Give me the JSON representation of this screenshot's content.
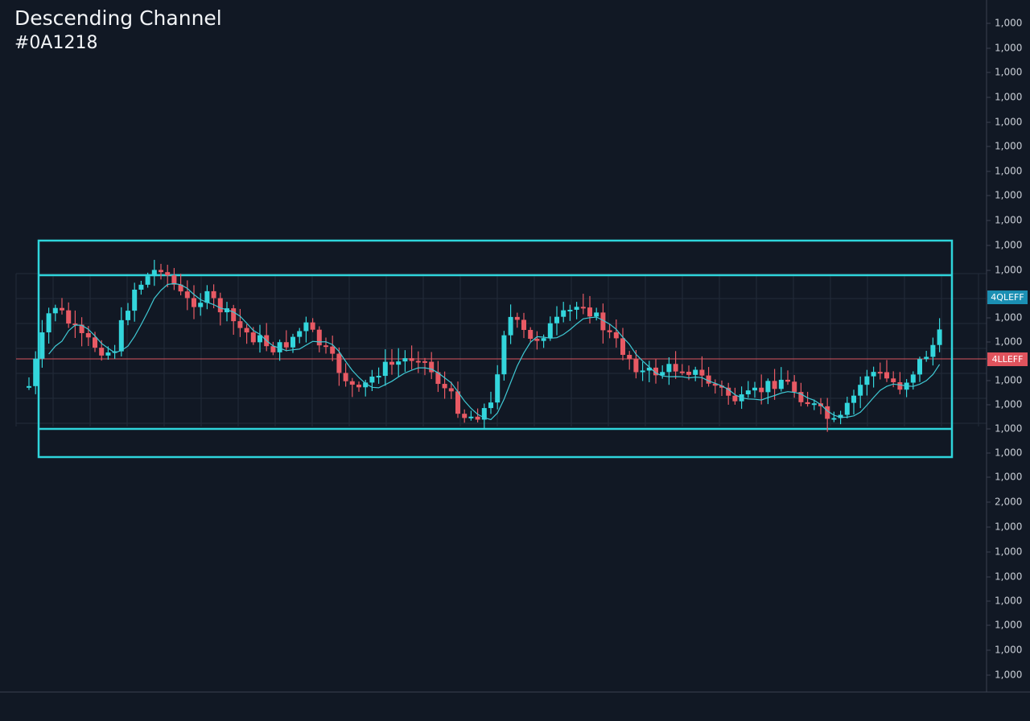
{
  "title": "Descending Channel",
  "subtitle": "#0A1218",
  "axis_labels": [
    "1,000",
    "1,000",
    "1,000",
    "1,000",
    "1,000",
    "1,000",
    "1,000",
    "1,000",
    "1,000",
    "1,000",
    "1,000",
    "1,000",
    "1,000",
    "1,000",
    "1,000",
    "1,000",
    "1,000",
    "1,000",
    "2,000",
    "1,000",
    "1,000",
    "1,000",
    "1,000",
    "1,000",
    "1,000",
    "1,000"
  ],
  "badges": [
    "4QLEFF",
    "4LLEFF"
  ]
}
